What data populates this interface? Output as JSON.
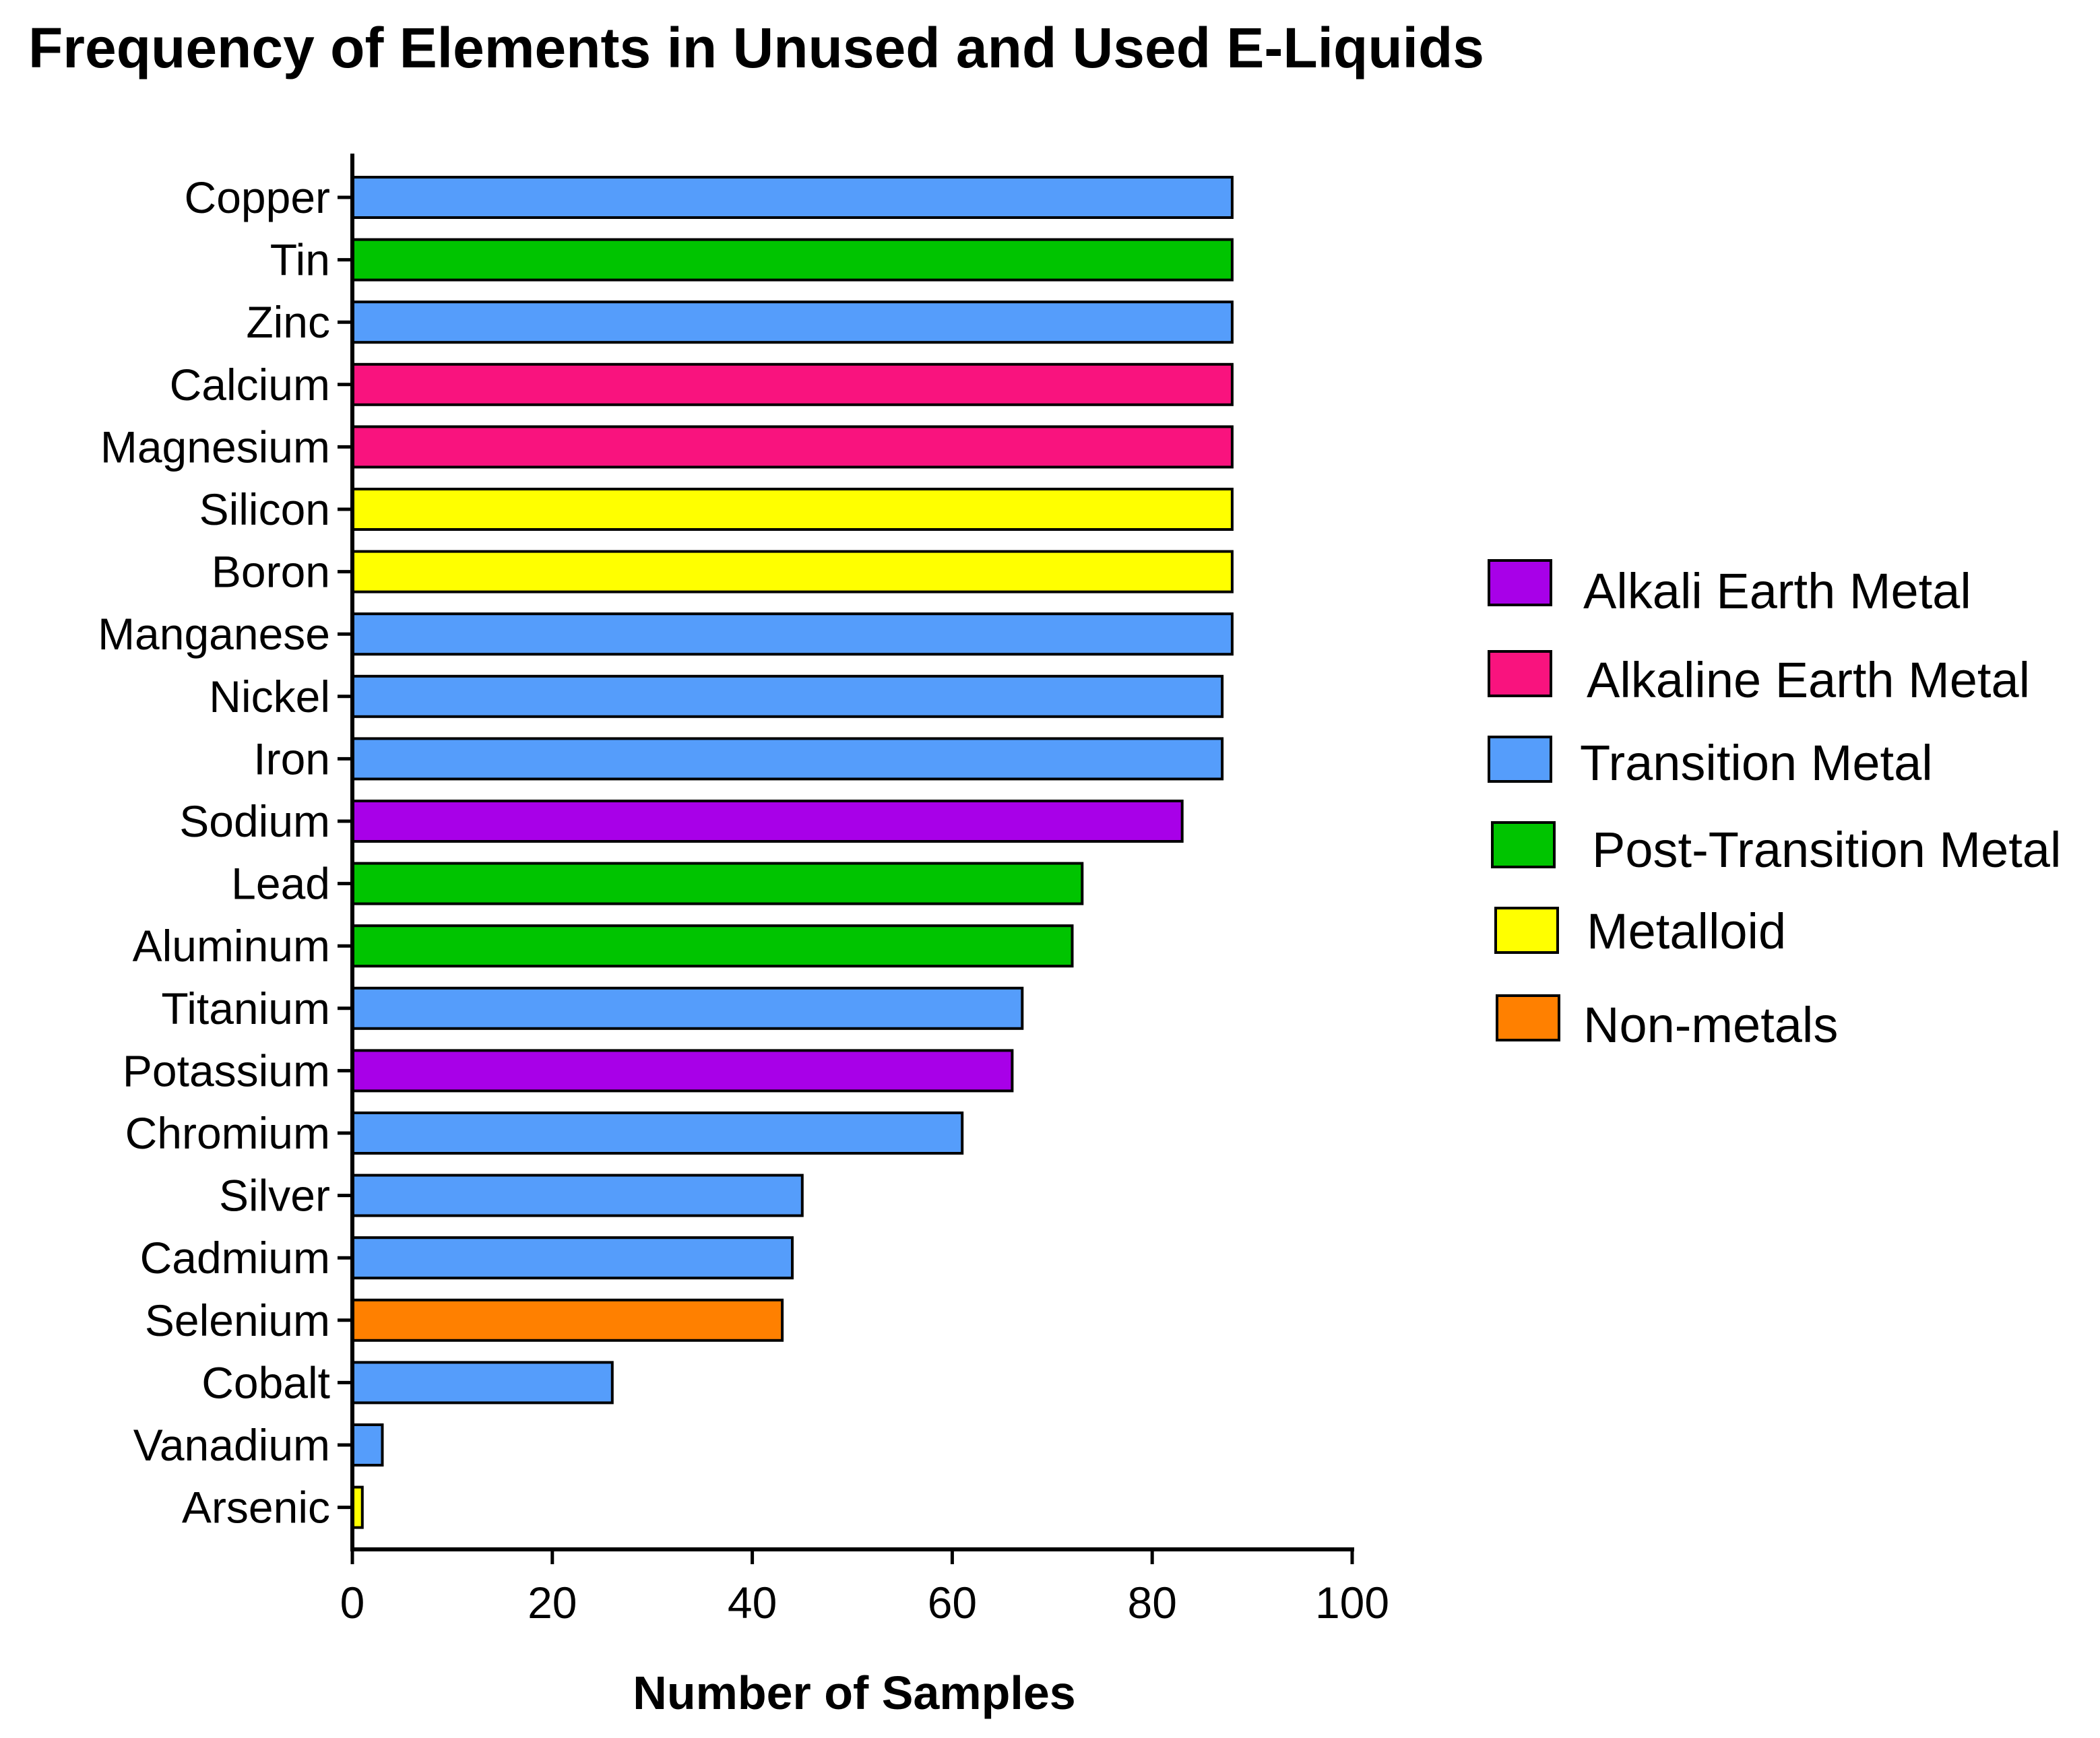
{
  "chart_data": {
    "type": "bar",
    "orientation": "horizontal",
    "title": "Frequency of Elements in Unused and Used E-Liquids",
    "xlabel": "Number of Samples",
    "ylabel": "",
    "xlim": [
      0,
      100
    ],
    "xticks": [
      "0",
      "20",
      "40",
      "60",
      "80",
      "100"
    ],
    "grid": false,
    "legend_position": "right",
    "legend": [
      {
        "key": "alkali",
        "label": "Alkali Earth Metal",
        "color": "#A800E8"
      },
      {
        "key": "alkaline",
        "label": "Alkaline Earth Metal",
        "color": "#F9137E"
      },
      {
        "key": "transition",
        "label": "Transition Metal",
        "color": "#559DFB"
      },
      {
        "key": "post",
        "label": "Post-Transition Metal",
        "color": "#00C400"
      },
      {
        "key": "metalloid",
        "label": "Metalloid",
        "color": "#FFFF00"
      },
      {
        "key": "nonmetal",
        "label": "Non-metals",
        "color": "#FF8000"
      }
    ],
    "bars": [
      {
        "category": "Copper",
        "value": 88,
        "group": "transition"
      },
      {
        "category": "Tin",
        "value": 88,
        "group": "post"
      },
      {
        "category": "Zinc",
        "value": 88,
        "group": "transition"
      },
      {
        "category": "Calcium",
        "value": 88,
        "group": "alkaline"
      },
      {
        "category": "Magnesium",
        "value": 88,
        "group": "alkaline"
      },
      {
        "category": "Silicon",
        "value": 88,
        "group": "metalloid"
      },
      {
        "category": "Boron",
        "value": 88,
        "group": "metalloid"
      },
      {
        "category": "Manganese",
        "value": 88,
        "group": "transition"
      },
      {
        "category": "Nickel",
        "value": 87,
        "group": "transition"
      },
      {
        "category": "Iron",
        "value": 87,
        "group": "transition"
      },
      {
        "category": "Sodium",
        "value": 83,
        "group": "alkali"
      },
      {
        "category": "Lead",
        "value": 73,
        "group": "post"
      },
      {
        "category": "Aluminum",
        "value": 72,
        "group": "post"
      },
      {
        "category": "Titanium",
        "value": 67,
        "group": "transition"
      },
      {
        "category": "Potassium",
        "value": 66,
        "group": "alkali"
      },
      {
        "category": "Chromium",
        "value": 61,
        "group": "transition"
      },
      {
        "category": "Silver",
        "value": 45,
        "group": "transition"
      },
      {
        "category": "Cadmium",
        "value": 44,
        "group": "transition"
      },
      {
        "category": "Selenium",
        "value": 43,
        "group": "nonmetal"
      },
      {
        "category": "Cobalt",
        "value": 26,
        "group": "transition"
      },
      {
        "category": "Vanadium",
        "value": 3,
        "group": "transition"
      },
      {
        "category": "Arsenic",
        "value": 1,
        "group": "metalloid"
      }
    ]
  }
}
